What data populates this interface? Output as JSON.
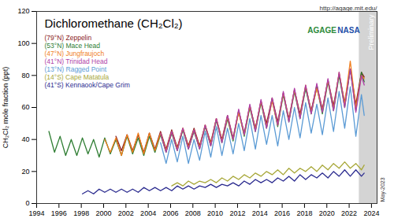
{
  "chart_data": {
    "type": "line",
    "title": "Dichloromethane (CH₂Cl₂)",
    "y_label": "CH₂Cl₂ mole fraction (ppt)",
    "source": "http://agage.mit.edu/",
    "date_label": "May-2023",
    "logos": [
      "AGAGE",
      "NASA"
    ],
    "preliminary": {
      "label": "Preliminary",
      "from": 2022.9,
      "to": 2024.5
    },
    "xlim": [
      1994,
      2024.5
    ],
    "xticks": [
      1994,
      1996,
      1998,
      2000,
      2002,
      2004,
      2006,
      2008,
      2010,
      2012,
      2014,
      2016,
      2018,
      2020,
      2022,
      2024
    ],
    "ylim": [
      0,
      120
    ],
    "yticks": [
      0,
      20,
      40,
      60,
      80,
      100,
      120
    ],
    "grid": false,
    "x": [
      1995.1,
      1995.6,
      1996.1,
      1996.6,
      1997.1,
      1997.6,
      1998.1,
      1998.6,
      1999.1,
      1999.6,
      2000.1,
      2000.6,
      2001.1,
      2001.6,
      2002.1,
      2002.6,
      2003.1,
      2003.6,
      2004.1,
      2004.6,
      2005.1,
      2005.6,
      2006.1,
      2006.6,
      2007.1,
      2007.6,
      2008.1,
      2008.6,
      2009.1,
      2009.6,
      2010.1,
      2010.6,
      2011.1,
      2011.6,
      2012.1,
      2012.6,
      2013.1,
      2013.6,
      2014.1,
      2014.6,
      2015.1,
      2015.6,
      2016.1,
      2016.6,
      2017.1,
      2017.6,
      2018.1,
      2018.6,
      2019.1,
      2019.6,
      2020.1,
      2020.6,
      2021.1,
      2021.6,
      2022.1,
      2022.6,
      2023.1,
      2023.35
    ],
    "series": [
      {
        "name": "(79°N) Zeppelin",
        "color": "#8b1c1c",
        "values": [
          null,
          null,
          null,
          null,
          null,
          null,
          null,
          null,
          null,
          null,
          null,
          null,
          42,
          33,
          43,
          33,
          43,
          32,
          44,
          34,
          45,
          34,
          46,
          35,
          47,
          36,
          47,
          36,
          49,
          38,
          53,
          40,
          55,
          41,
          58,
          44,
          61,
          47,
          64,
          50,
          66,
          51,
          69,
          53,
          71,
          56,
          73,
          58,
          74,
          59,
          77,
          61,
          81,
          63,
          84,
          62,
          82,
          79
        ]
      },
      {
        "name": "(53°N) Mace Head",
        "color": "#2e7d32",
        "values": [
          45,
          32,
          42,
          30,
          40,
          30,
          41,
          31,
          40,
          29,
          41,
          31,
          40,
          30,
          42,
          31,
          41,
          30,
          42,
          32,
          43,
          32,
          44,
          33,
          46,
          34,
          45,
          34,
          48,
          36,
          52,
          38,
          53,
          39,
          58,
          42,
          60,
          45,
          63,
          47,
          65,
          48,
          68,
          51,
          70,
          53,
          72,
          56,
          73,
          56,
          76,
          58,
          80,
          60,
          84,
          58,
          82,
          76
        ]
      },
      {
        "name": "(47°N) Jungfraujoch",
        "color": "#f07f1e",
        "values": [
          null,
          null,
          null,
          null,
          null,
          null,
          null,
          null,
          null,
          null,
          40,
          32,
          41,
          30,
          43,
          32,
          44,
          31,
          44,
          33,
          44,
          33,
          45,
          34,
          47,
          35,
          46,
          35,
          49,
          37,
          53,
          39,
          54,
          40,
          57,
          43,
          61,
          46,
          64,
          48,
          64,
          49,
          69,
          52,
          71,
          54,
          74,
          57,
          72,
          58,
          77,
          59,
          82,
          62,
          89,
          60,
          80,
          78
        ]
      },
      {
        "name": "(41°N) Trinidad Head",
        "color": "#b03fa8",
        "values": [
          null,
          null,
          null,
          null,
          null,
          null,
          null,
          null,
          null,
          null,
          null,
          null,
          null,
          null,
          null,
          null,
          null,
          null,
          null,
          null,
          44,
          32,
          45,
          33,
          47,
          34,
          46,
          34,
          49,
          36,
          53,
          38,
          55,
          40,
          59,
          43,
          62,
          45,
          65,
          47,
          66,
          49,
          70,
          51,
          72,
          53,
          74,
          56,
          75,
          57,
          78,
          58,
          82,
          60,
          84,
          57,
          80,
          74
        ]
      },
      {
        "name": "(13°N) Ragged Point",
        "color": "#5b9bd5",
        "values": [
          null,
          null,
          null,
          null,
          null,
          null,
          null,
          null,
          null,
          null,
          null,
          null,
          null,
          null,
          null,
          null,
          null,
          null,
          null,
          null,
          38,
          25,
          40,
          26,
          42,
          25,
          40,
          27,
          45,
          29,
          48,
          30,
          47,
          31,
          50,
          33,
          53,
          34,
          55,
          37,
          55,
          36,
          58,
          40,
          60,
          41,
          63,
          44,
          62,
          43,
          66,
          45,
          70,
          47,
          73,
          42,
          68,
          55
        ]
      },
      {
        "name": "(14°S) Cape Matatula",
        "color": "#a8a83a",
        "values": [
          null,
          null,
          null,
          null,
          null,
          null,
          null,
          null,
          null,
          null,
          null,
          null,
          null,
          null,
          null,
          null,
          null,
          null,
          null,
          null,
          null,
          null,
          11,
          13,
          11,
          14,
          12,
          14,
          13,
          15,
          13,
          16,
          14,
          17,
          15,
          18,
          16,
          19,
          17,
          20,
          18,
          21,
          18,
          22,
          19,
          22,
          20,
          23,
          20,
          24,
          21,
          25,
          22,
          26,
          22,
          25,
          21,
          24
        ]
      },
      {
        "name": "(41°S) Kennaook/Cape Grim",
        "color": "#2b2b8f",
        "values": [
          null,
          null,
          null,
          null,
          null,
          null,
          6,
          8,
          6,
          9,
          7,
          9,
          7,
          9,
          7,
          9,
          7,
          10,
          8,
          10,
          8,
          10,
          8,
          11,
          9,
          11,
          9,
          11,
          10,
          12,
          10,
          12,
          11,
          13,
          11,
          14,
          12,
          15,
          13,
          15,
          13,
          16,
          14,
          17,
          14,
          18,
          15,
          18,
          16,
          19,
          16,
          20,
          17,
          21,
          17,
          21,
          17,
          19
        ]
      }
    ]
  }
}
